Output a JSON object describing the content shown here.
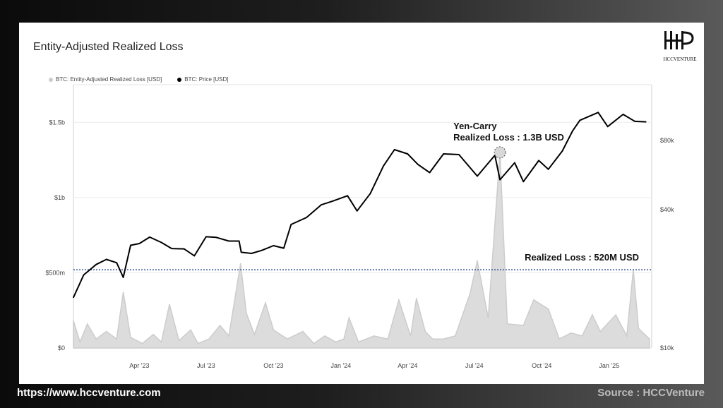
{
  "page": {
    "footer_url": "https://www.hccventure.com",
    "footer_source": "Source : HCCVenture"
  },
  "logo": {
    "text": "HCCVENTURE"
  },
  "chart_data": {
    "type": "line",
    "title": "Entity-Adjusted Realized Loss",
    "legend": [
      {
        "name": "BTC: Entity-Adjusted Realized Loss [USD]",
        "color": "#cccccc"
      },
      {
        "name": "BTC: Price [USD]",
        "color": "#000000"
      }
    ],
    "x_tick_labels": [
      "Apr '23",
      "Jul '23",
      "Oct '23",
      "Jan '24",
      "Apr '24",
      "Jul '24",
      "Oct '24",
      "Jan '25"
    ],
    "x_ticks_time": [
      0.25,
      0.5,
      0.75,
      1.0,
      1.25,
      1.5,
      1.75,
      2.0
    ],
    "x_range": [
      "2023-01-01",
      "2025-02-28"
    ],
    "left_axis": {
      "label": "",
      "tick_labels": [
        "$0",
        "$500m",
        "$1b",
        "$1.5b"
      ],
      "tick_values": [
        0,
        500000000,
        1000000000,
        1500000000
      ],
      "range": [
        0,
        1750000000
      ]
    },
    "right_axis": {
      "label": "",
      "scale": "log",
      "tick_labels": [
        "$10k",
        "$40k",
        "$80k"
      ],
      "tick_values": [
        10000,
        40000,
        80000
      ],
      "range": [
        10000,
        140000
      ]
    },
    "series": [
      {
        "name": "BTC: Price [USD]",
        "axis": "right",
        "color": "#000000",
        "points": [
          [
            "2023-01-01",
            16600
          ],
          [
            "2023-01-15",
            20800
          ],
          [
            "2023-02-01",
            23100
          ],
          [
            "2023-02-15",
            24300
          ],
          [
            "2023-03-01",
            23500
          ],
          [
            "2023-03-10",
            20300
          ],
          [
            "2023-03-20",
            28000
          ],
          [
            "2023-04-01",
            28500
          ],
          [
            "2023-04-15",
            30400
          ],
          [
            "2023-05-01",
            28800
          ],
          [
            "2023-05-15",
            27100
          ],
          [
            "2023-06-01",
            27000
          ],
          [
            "2023-06-15",
            25200
          ],
          [
            "2023-07-01",
            30500
          ],
          [
            "2023-07-15",
            30300
          ],
          [
            "2023-08-01",
            29200
          ],
          [
            "2023-08-15",
            29200
          ],
          [
            "2023-08-18",
            26100
          ],
          [
            "2023-09-01",
            25800
          ],
          [
            "2023-09-15",
            26600
          ],
          [
            "2023-10-01",
            27900
          ],
          [
            "2023-10-15",
            27200
          ],
          [
            "2023-10-25",
            34500
          ],
          [
            "2023-11-15",
            37000
          ],
          [
            "2023-12-05",
            42000
          ],
          [
            "2023-12-20",
            43500
          ],
          [
            "2024-01-10",
            46000
          ],
          [
            "2024-01-23",
            39500
          ],
          [
            "2024-02-10",
            47000
          ],
          [
            "2024-02-28",
            62000
          ],
          [
            "2024-03-14",
            73000
          ],
          [
            "2024-04-01",
            70000
          ],
          [
            "2024-04-15",
            63000
          ],
          [
            "2024-05-01",
            58000
          ],
          [
            "2024-05-20",
            70000
          ],
          [
            "2024-06-10",
            69500
          ],
          [
            "2024-07-05",
            56000
          ],
          [
            "2024-07-29",
            69000
          ],
          [
            "2024-08-05",
            54000
          ],
          [
            "2024-08-25",
            64000
          ],
          [
            "2024-09-06",
            53000
          ],
          [
            "2024-09-27",
            65500
          ],
          [
            "2024-10-10",
            60000
          ],
          [
            "2024-10-29",
            72000
          ],
          [
            "2024-11-12",
            88000
          ],
          [
            "2024-11-22",
            98000
          ],
          [
            "2024-12-17",
            106000
          ],
          [
            "2024-12-30",
            92000
          ],
          [
            "2025-01-20",
            104000
          ],
          [
            "2025-02-05",
            97000
          ],
          [
            "2025-02-20",
            96500
          ]
        ]
      },
      {
        "name": "BTC: Entity-Adjusted Realized Loss [USD]",
        "axis": "left",
        "color": "#cccccc",
        "points": [
          [
            "2023-01-01",
            180000000
          ],
          [
            "2023-01-10",
            40000000
          ],
          [
            "2023-01-20",
            160000000
          ],
          [
            "2023-02-01",
            60000000
          ],
          [
            "2023-02-15",
            110000000
          ],
          [
            "2023-03-01",
            60000000
          ],
          [
            "2023-03-10",
            370000000
          ],
          [
            "2023-03-20",
            70000000
          ],
          [
            "2023-04-05",
            30000000
          ],
          [
            "2023-04-20",
            90000000
          ],
          [
            "2023-05-01",
            40000000
          ],
          [
            "2023-05-12",
            290000000
          ],
          [
            "2023-05-25",
            50000000
          ],
          [
            "2023-06-10",
            120000000
          ],
          [
            "2023-06-20",
            30000000
          ],
          [
            "2023-07-05",
            60000000
          ],
          [
            "2023-07-20",
            150000000
          ],
          [
            "2023-08-01",
            80000000
          ],
          [
            "2023-08-17",
            560000000
          ],
          [
            "2023-08-25",
            230000000
          ],
          [
            "2023-09-05",
            90000000
          ],
          [
            "2023-09-20",
            300000000
          ],
          [
            "2023-10-01",
            120000000
          ],
          [
            "2023-10-20",
            60000000
          ],
          [
            "2023-11-10",
            110000000
          ],
          [
            "2023-11-25",
            30000000
          ],
          [
            "2023-12-10",
            80000000
          ],
          [
            "2023-12-25",
            40000000
          ],
          [
            "2024-01-05",
            60000000
          ],
          [
            "2024-01-12",
            200000000
          ],
          [
            "2024-01-25",
            40000000
          ],
          [
            "2024-02-15",
            80000000
          ],
          [
            "2024-03-05",
            60000000
          ],
          [
            "2024-03-20",
            320000000
          ],
          [
            "2024-04-05",
            80000000
          ],
          [
            "2024-04-13",
            330000000
          ],
          [
            "2024-04-25",
            110000000
          ],
          [
            "2024-05-05",
            60000000
          ],
          [
            "2024-05-20",
            60000000
          ],
          [
            "2024-06-05",
            80000000
          ],
          [
            "2024-06-25",
            360000000
          ],
          [
            "2024-07-05",
            580000000
          ],
          [
            "2024-07-20",
            200000000
          ],
          [
            "2024-08-05",
            1300000000
          ],
          [
            "2024-08-15",
            160000000
          ],
          [
            "2024-09-06",
            150000000
          ],
          [
            "2024-09-20",
            320000000
          ],
          [
            "2024-10-10",
            260000000
          ],
          [
            "2024-10-25",
            60000000
          ],
          [
            "2024-11-10",
            100000000
          ],
          [
            "2024-11-25",
            80000000
          ],
          [
            "2024-12-09",
            220000000
          ],
          [
            "2024-12-20",
            110000000
          ],
          [
            "2025-01-10",
            220000000
          ],
          [
            "2025-01-25",
            80000000
          ],
          [
            "2025-02-03",
            520000000
          ],
          [
            "2025-02-10",
            130000000
          ],
          [
            "2025-02-25",
            60000000
          ]
        ]
      }
    ],
    "reference_line": {
      "value": 520000000,
      "axis": "left",
      "style": "dotted",
      "color": "#1f3f8a"
    },
    "annotations": [
      {
        "text_line1": "Yen-Carry",
        "text_line2": "Realized Loss : 1.3B USD",
        "date": "2024-08-05",
        "value": 1300000000
      },
      {
        "text": "Realized Loss : 520M USD",
        "value": 520000000
      }
    ]
  }
}
